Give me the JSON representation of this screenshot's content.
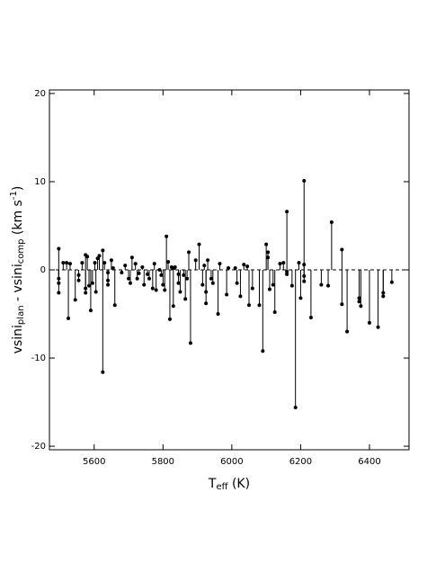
{
  "chart_data": {
    "type": "stem",
    "x_label": [
      {
        "text": "T"
      },
      {
        "text": "eff",
        "style": "sub"
      },
      {
        "text": " (K)"
      }
    ],
    "y_label": [
      {
        "text": "vsini"
      },
      {
        "text": "plan",
        "style": "sub"
      },
      {
        "text": " - vsini"
      },
      {
        "text": "comp",
        "style": "sub"
      },
      {
        "text": " (km s"
      },
      {
        "text": "-1",
        "style": "sup"
      },
      {
        "text": ")"
      }
    ],
    "xlim": [
      5470,
      6515
    ],
    "ylim": [
      -20.4,
      20.4
    ],
    "xticks": [
      5600,
      5800,
      6000,
      6200,
      6400
    ],
    "yticks": [
      -20,
      -10,
      0,
      10,
      20
    ],
    "baseline": 0,
    "color": "#000000",
    "x": [
      5497,
      5497,
      5497,
      5497,
      5510,
      5520,
      5525,
      5530,
      5545,
      5555,
      5555,
      5565,
      5575,
      5575,
      5575,
      5580,
      5585,
      5590,
      5595,
      5602,
      5605,
      5610,
      5615,
      5625,
      5625,
      5630,
      5640,
      5640,
      5640,
      5650,
      5655,
      5660,
      5680,
      5690,
      5700,
      5705,
      5710,
      5720,
      5725,
      5730,
      5740,
      5745,
      5755,
      5760,
      5770,
      5775,
      5780,
      5790,
      5795,
      5800,
      5805,
      5810,
      5815,
      5820,
      5825,
      5830,
      5830,
      5835,
      5845,
      5845,
      5850,
      5860,
      5865,
      5870,
      5875,
      5880,
      5895,
      5905,
      5915,
      5920,
      5925,
      5925,
      5930,
      5940,
      5945,
      5960,
      5965,
      5985,
      5990,
      6010,
      6015,
      6025,
      6035,
      6045,
      6050,
      6060,
      6080,
      6090,
      6100,
      6105,
      6105,
      6110,
      6120,
      6125,
      6140,
      6150,
      6160,
      6160,
      6160,
      6175,
      6185,
      6195,
      6200,
      6210,
      6210,
      6210,
      6210,
      6230,
      6260,
      6280,
      6290,
      6320,
      6320,
      6335,
      6370,
      6370,
      6375,
      6400,
      6425,
      6440,
      6440,
      6465
    ],
    "values": [
      2.4,
      -1.0,
      -1.5,
      -2.6,
      0.8,
      0.8,
      -5.5,
      0.7,
      -3.4,
      -1.2,
      -0.6,
      0.8,
      1.7,
      -2.6,
      -2.1,
      1.5,
      -1.8,
      -4.6,
      -1.5,
      0.8,
      -2.5,
      1.3,
      1.6,
      -11.6,
      2.2,
      0.8,
      -0.3,
      -1.2,
      -1.7,
      1.1,
      0.2,
      -4.0,
      -0.3,
      0.5,
      -1.0,
      -1.5,
      1.4,
      0.7,
      -1.0,
      -0.4,
      0.3,
      -1.7,
      -0.5,
      -1.0,
      -2.1,
      0.7,
      -2.3,
      0.0,
      -0.6,
      -1.7,
      -2.3,
      3.8,
      0.9,
      -5.6,
      0.3,
      0.2,
      -4.1,
      0.3,
      -0.5,
      -1.5,
      -2.5,
      -0.6,
      -3.3,
      -1.0,
      2.0,
      -8.3,
      1.1,
      2.9,
      -1.7,
      0.5,
      -2.5,
      -3.8,
      1.1,
      -1.0,
      -1.5,
      -5.0,
      0.7,
      -2.8,
      0.2,
      0.2,
      -1.5,
      -3.0,
      0.6,
      0.4,
      -4.0,
      -2.1,
      -4.0,
      -9.2,
      2.9,
      1.4,
      2.0,
      -2.2,
      -1.7,
      -4.8,
      0.7,
      0.8,
      6.6,
      -0.2,
      -0.5,
      -1.8,
      -15.6,
      0.8,
      -3.2,
      10.1,
      0.6,
      -0.7,
      -1.3,
      -5.4,
      -1.7,
      -1.8,
      5.4,
      2.3,
      -3.9,
      -7.0,
      -3.6,
      -3.2,
      -4.1,
      -6.0,
      -6.5,
      -3.0,
      -2.6,
      -1.4
    ]
  }
}
